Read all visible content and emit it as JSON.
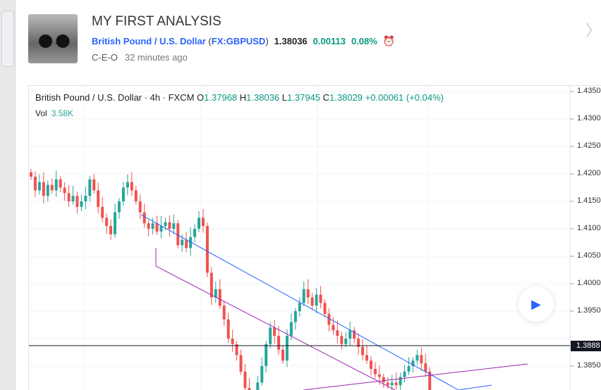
{
  "header": {
    "title": "MY FIRST ANALYSIS",
    "symbol_name": "British Pound / U.S. Dollar",
    "symbol_code": "FX:GBPUSD",
    "price": "1.38036",
    "change": "0.00113",
    "change_pct": "0.08%",
    "author": "C-E-O",
    "time": "32 minutes ago"
  },
  "legend": {
    "title": "British Pound / U.S. Dollar · 4h · FXCM",
    "o_label": "O",
    "o": "1.37968",
    "h_label": "H",
    "h": "1.38036",
    "l_label": "L",
    "l": "1.37945",
    "c_label": "C",
    "c": "1.38029",
    "change": "+0.00061 (+0.04%)",
    "vol_label": "Vol",
    "vol": "3.58K"
  },
  "colors": {
    "up": "#26a69a",
    "down": "#ef5350",
    "accent": "#2962ff",
    "channel1": "#2962ff",
    "channel2": "#9c27b0"
  },
  "chart_data": {
    "type": "candlestick",
    "y_ticks": [
      "1.4350",
      "1.4300",
      "1.4250",
      "1.4200",
      "1.4150",
      "1.4100",
      "1.4050",
      "1.4000",
      "1.3950",
      "1.3850"
    ],
    "ylim": [
      1.381,
      1.436
    ],
    "current_line": "1.3888",
    "closes": [
      1.4195,
      1.417,
      1.4185,
      1.416,
      1.418,
      1.417,
      1.419,
      1.4175,
      1.4165,
      1.415,
      1.416,
      1.414,
      1.415,
      1.416,
      1.419,
      1.417,
      1.414,
      1.412,
      1.4105,
      1.409,
      1.413,
      1.415,
      1.4175,
      1.4185,
      1.417,
      1.415,
      1.413,
      1.411,
      1.41,
      1.411,
      1.4095,
      1.4105,
      1.4112,
      1.41,
      1.411,
      1.407,
      1.408,
      1.4065,
      1.4085,
      1.41,
      1.412,
      1.4105,
      1.402,
      1.3975,
      1.399,
      1.396,
      1.3935,
      1.39,
      1.389,
      1.387,
      1.384,
      1.381,
      1.379,
      1.3795,
      1.382,
      1.385,
      1.389,
      1.392,
      1.3905,
      1.388,
      1.386,
      1.3905,
      1.393,
      1.395,
      1.3965,
      1.399,
      1.3975,
      1.396,
      1.398,
      1.3965,
      1.3945,
      1.3925,
      1.3915,
      1.3905,
      1.389,
      1.39,
      1.3915,
      1.39,
      1.3885,
      1.387,
      1.386,
      1.3845,
      1.3835,
      1.383,
      1.382,
      1.3815,
      1.382,
      1.3815,
      1.383,
      1.384,
      1.385,
      1.386,
      1.387,
      1.3855,
      1.384,
      1.38
    ]
  }
}
